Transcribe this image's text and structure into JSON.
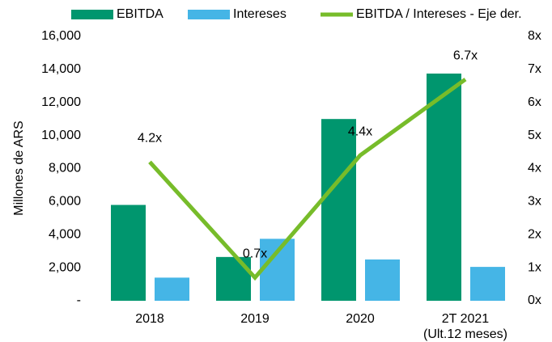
{
  "chart_data": {
    "type": "bar",
    "categories": [
      "2018",
      "2019",
      "2020",
      "2T 2021\n(Ult.12 meses)"
    ],
    "series": [
      {
        "name": "EBITDA",
        "type": "bar",
        "color": "#00966e",
        "values": [
          5800,
          2650,
          11000,
          13750
        ]
      },
      {
        "name": "Intereses",
        "type": "bar",
        "color": "#45b5e6",
        "values": [
          1400,
          3750,
          2500,
          2050
        ]
      },
      {
        "name": "EBITDA / Intereses - Eje der.",
        "type": "line",
        "axis": "y2",
        "color": "#77bc2a",
        "values": [
          4.2,
          0.7,
          4.4,
          6.7
        ],
        "value_labels": [
          "4.2x",
          "0.7x",
          "4.4x",
          "6.7x"
        ]
      }
    ],
    "ylabel": "Millones de ARS",
    "ylim": [
      0,
      16000
    ],
    "yticks": [
      {
        "value": 0,
        "label": "-"
      },
      {
        "value": 2000,
        "label": "2,000"
      },
      {
        "value": 4000,
        "label": "4,000"
      },
      {
        "value": 6000,
        "label": "6,000"
      },
      {
        "value": 8000,
        "label": "8,000"
      },
      {
        "value": 10000,
        "label": "10,000"
      },
      {
        "value": 12000,
        "label": "12,000"
      },
      {
        "value": 14000,
        "label": "14,000"
      },
      {
        "value": 16000,
        "label": "16,000"
      }
    ],
    "y2lim": [
      0,
      8
    ],
    "y2ticks": [
      {
        "value": 0,
        "label": "0x"
      },
      {
        "value": 1,
        "label": "1x"
      },
      {
        "value": 2,
        "label": "2x"
      },
      {
        "value": 3,
        "label": "3x"
      },
      {
        "value": 4,
        "label": "4x"
      },
      {
        "value": 5,
        "label": "5x"
      },
      {
        "value": 6,
        "label": "6x"
      },
      {
        "value": 7,
        "label": "7x"
      },
      {
        "value": 8,
        "label": "8x"
      }
    ],
    "legend": "top"
  }
}
